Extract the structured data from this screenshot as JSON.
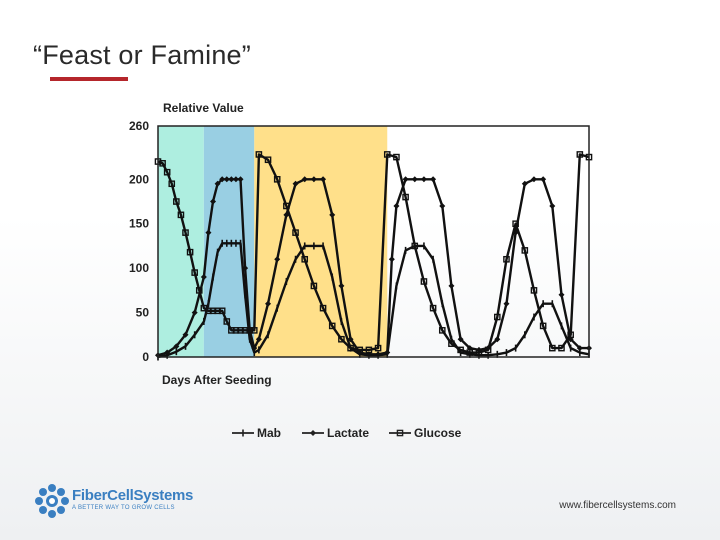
{
  "slide": {
    "title": "“Feast or Famine”",
    "website": "www.fibercellsystems.com",
    "logo": {
      "name": "FiberCellSystems",
      "tagline": "A BETTER WAY TO GROW CELLS"
    },
    "accent_color": "#b5262b"
  },
  "chart_data": {
    "type": "line",
    "ylabel": "Relative Value",
    "xlabel": "Days After Seeding",
    "ylim": [
      0,
      260
    ],
    "yticks": [
      0,
      50,
      100,
      150,
      200,
      260
    ],
    "xlim": [
      0,
      47
    ],
    "grid": false,
    "legend_position": "bottom",
    "bands": [
      {
        "x0": 0,
        "x1": 5,
        "color": "#aeeee0"
      },
      {
        "x0": 5,
        "x1": 10.5,
        "color": "#99cfe3"
      },
      {
        "x0": 10.5,
        "x1": 25,
        "color": "#ffe08a"
      }
    ],
    "series": [
      {
        "name": "Mab",
        "color": "#111111",
        "x": [
          0,
          1,
          2,
          3,
          4,
          5,
          5.5,
          6,
          6.5,
          7,
          7.5,
          8,
          8.5,
          9,
          9.5,
          10,
          10.5,
          11,
          12,
          13,
          14,
          15,
          16,
          17,
          18,
          19,
          20,
          21,
          22,
          23,
          24,
          25,
          26,
          27,
          28,
          29,
          30,
          31,
          32,
          33,
          34,
          35,
          36,
          37,
          38,
          39,
          40,
          41,
          42,
          43,
          44,
          45,
          46,
          47
        ],
        "y": [
          0,
          2,
          6,
          12,
          25,
          40,
          60,
          90,
          118,
          128,
          128,
          128,
          128,
          128,
          70,
          20,
          5,
          8,
          25,
          55,
          85,
          110,
          125,
          125,
          125,
          90,
          40,
          10,
          3,
          2,
          2,
          3,
          80,
          120,
          125,
          125,
          110,
          60,
          20,
          5,
          3,
          2,
          2,
          3,
          5,
          10,
          25,
          45,
          60,
          60,
          35,
          10,
          5,
          3
        ]
      },
      {
        "name": "Lactate",
        "color": "#111111",
        "x": [
          0,
          1,
          2,
          3,
          4,
          5,
          5.5,
          6,
          6.5,
          7,
          7.5,
          8,
          8.5,
          9,
          9.5,
          10,
          10.5,
          11,
          12,
          13,
          14,
          15,
          16,
          17,
          18,
          19,
          20,
          21,
          22,
          23,
          24,
          25,
          25.5,
          26,
          27,
          28,
          29,
          30,
          31,
          32,
          33,
          34,
          35,
          36,
          37,
          38,
          39,
          40,
          41,
          42,
          43,
          44,
          45,
          46,
          47
        ],
        "y": [
          2,
          5,
          12,
          25,
          50,
          90,
          140,
          175,
          195,
          200,
          200,
          200,
          200,
          200,
          100,
          30,
          10,
          20,
          60,
          110,
          160,
          195,
          200,
          200,
          200,
          160,
          80,
          20,
          5,
          3,
          3,
          5,
          110,
          170,
          200,
          200,
          200,
          200,
          170,
          80,
          20,
          10,
          8,
          10,
          20,
          60,
          140,
          195,
          200,
          200,
          170,
          70,
          20,
          10,
          10
        ]
      },
      {
        "name": "Glucose",
        "color": "#111111",
        "x": [
          0,
          0.5,
          1,
          1.5,
          2,
          2.5,
          3,
          3.5,
          4,
          4.5,
          5,
          5.5,
          6,
          6.5,
          7,
          7.5,
          8,
          8.5,
          9,
          9.5,
          10,
          10.5,
          11,
          12,
          13,
          14,
          15,
          16,
          17,
          18,
          19,
          20,
          21,
          22,
          23,
          24,
          25,
          26,
          27,
          28,
          29,
          30,
          31,
          32,
          33,
          34,
          35,
          36,
          37,
          38,
          39,
          40,
          41,
          42,
          43,
          44,
          45,
          46,
          47
        ],
        "y": [
          220,
          218,
          208,
          195,
          175,
          160,
          140,
          118,
          95,
          75,
          55,
          52,
          52,
          52,
          52,
          40,
          30,
          30,
          30,
          30,
          30,
          30,
          228,
          222,
          200,
          170,
          140,
          110,
          80,
          55,
          35,
          20,
          10,
          8,
          8,
          10,
          228,
          225,
          180,
          125,
          85,
          55,
          30,
          15,
          8,
          5,
          5,
          8,
          45,
          110,
          150,
          120,
          75,
          35,
          10,
          10,
          25,
          228,
          225
        ]
      }
    ]
  }
}
